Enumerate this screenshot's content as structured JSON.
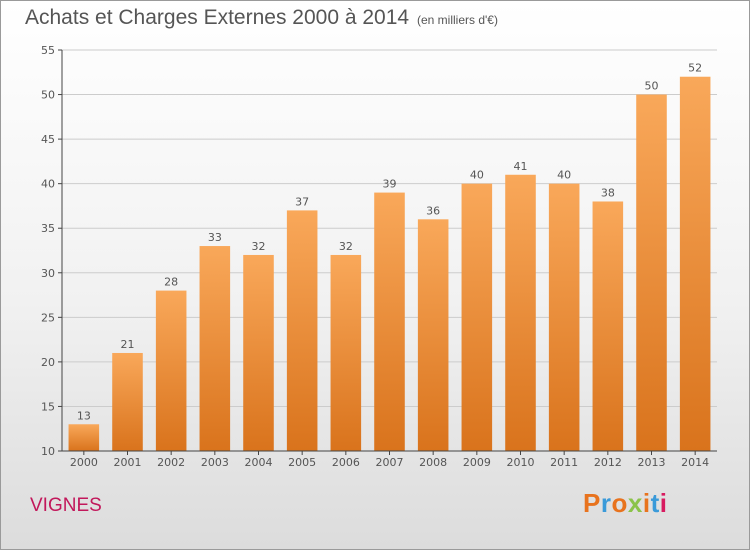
{
  "header": {
    "title": "Achats et Charges Externes 2000 à 2014",
    "subtitle": "(en milliers d'€)"
  },
  "footer": {
    "commune": "VIGNES",
    "brand": "Proxiti",
    "brand_colors": [
      "#e8731e",
      "#3a9ad9",
      "#e8731e",
      "#8bc34a",
      "#e8731e",
      "#3a9ad9",
      "#d81b60"
    ]
  },
  "colors": {
    "bar_light": "#f9a85a",
    "bar_dark": "#d9731c",
    "grid": "#cccccc",
    "axis": "#444444",
    "text": "#555555"
  },
  "chart_data": {
    "type": "bar",
    "title": "Achats et Charges Externes 2000 à 2014",
    "subtitle": "(en milliers d'€)",
    "categories": [
      "2000",
      "2001",
      "2002",
      "2003",
      "2004",
      "2005",
      "2006",
      "2007",
      "2008",
      "2009",
      "2010",
      "2011",
      "2012",
      "2013",
      "2014"
    ],
    "values": [
      13,
      21,
      28,
      33,
      32,
      37,
      32,
      39,
      36,
      40,
      41,
      40,
      38,
      50,
      52
    ],
    "ylim": [
      10,
      55
    ],
    "yticks": [
      10,
      15,
      20,
      25,
      30,
      35,
      40,
      45,
      50,
      55
    ],
    "grid": true,
    "data_labels": true
  }
}
